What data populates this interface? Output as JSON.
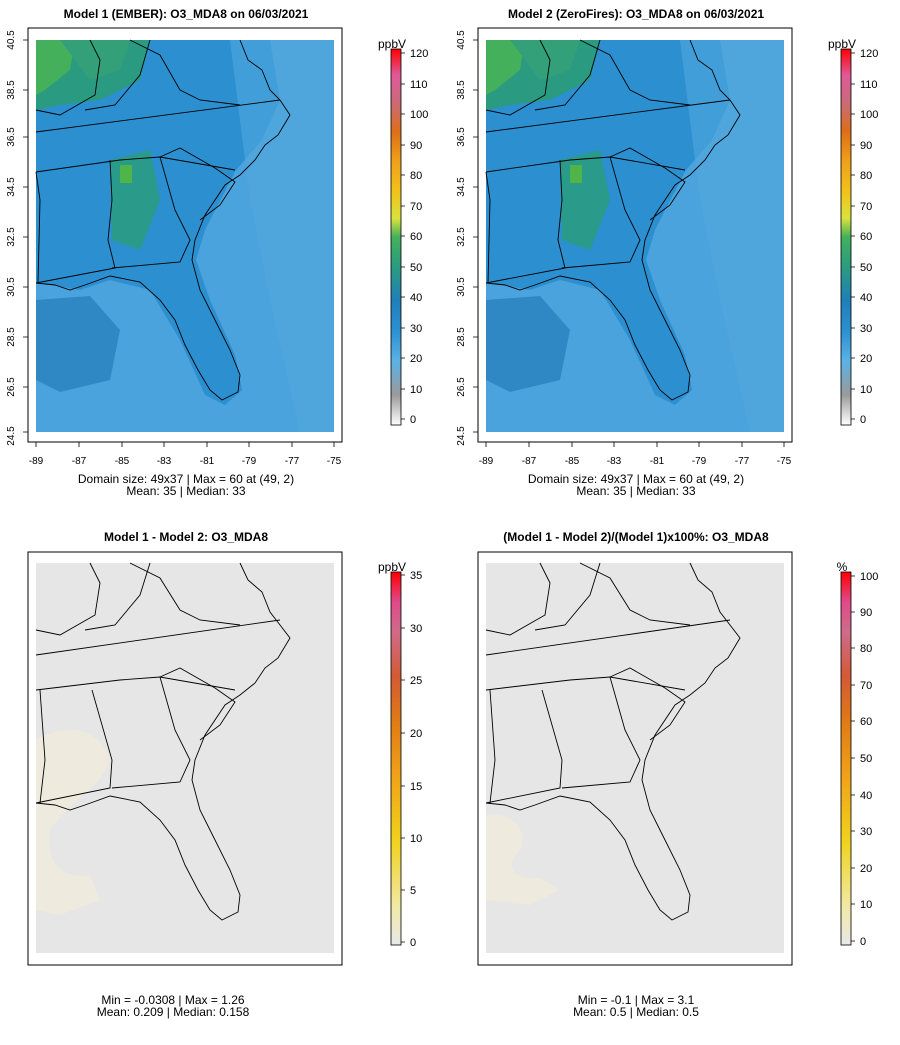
{
  "panels": [
    {
      "title": "Model 1 (EMBER): O3_MDA8 on 06/03/2021",
      "info1": "Domain size: 49x37 | Max = 60 at (49, 2)",
      "info2": "Mean: 35 |  Median: 33",
      "unit": "ppbV",
      "cb_labels": [
        "120",
        "110",
        "100",
        "90",
        "80",
        "70",
        "60",
        "50",
        "40",
        "30",
        "20",
        "10",
        "0"
      ],
      "xticks": [
        "-89",
        "-87",
        "-85",
        "-83",
        "-81",
        "-79",
        "-77",
        "-75"
      ],
      "yticks": [
        "40.5",
        "38.5",
        "36.5",
        "34.5",
        "32.5",
        "30.5",
        "28.5",
        "26.5",
        "24.5"
      ]
    },
    {
      "title": "Model 2 (ZeroFires): O3_MDA8 on 06/03/2021",
      "info1": "Domain size: 49x37 | Max = 60 at (49, 2)",
      "info2": "Mean: 35 |  Median: 33",
      "unit": "ppbV",
      "cb_labels": [
        "120",
        "110",
        "100",
        "90",
        "80",
        "70",
        "60",
        "50",
        "40",
        "30",
        "20",
        "10",
        "0"
      ],
      "xticks": [
        "-89",
        "-87",
        "-85",
        "-83",
        "-81",
        "-79",
        "-77",
        "-75"
      ],
      "yticks": [
        "40.5",
        "38.5",
        "36.5",
        "34.5",
        "32.5",
        "30.5",
        "28.5",
        "26.5",
        "24.5"
      ]
    },
    {
      "title": "Model 1 - Model 2: O3_MDA8",
      "info1": "Min = -0.0308 | Max = 1.26",
      "info2": "Mean: 0.209 |  Median: 0.158",
      "unit": "ppbV",
      "cb_labels": [
        "35",
        "30",
        "25",
        "20",
        "15",
        "10",
        "5",
        "0"
      ]
    },
    {
      "title": "(Model 1 - Model 2)/(Model 1)x100%: O3_MDA8",
      "info1": "Min = -0.1 | Max = 3.1",
      "info2": "Mean: 0.5 |  Median: 0.5",
      "unit": "%",
      "cb_labels": [
        "100",
        "90",
        "80",
        "70",
        "60",
        "50",
        "40",
        "30",
        "20",
        "10",
        "0"
      ]
    }
  ],
  "colors": {
    "ocean_blue": "#4aa3dc",
    "land_blue": "#2c8fd0",
    "green": "#3cae6f",
    "diff_bg": "#e6e6e6",
    "diff_low": "#eeeadb"
  }
}
